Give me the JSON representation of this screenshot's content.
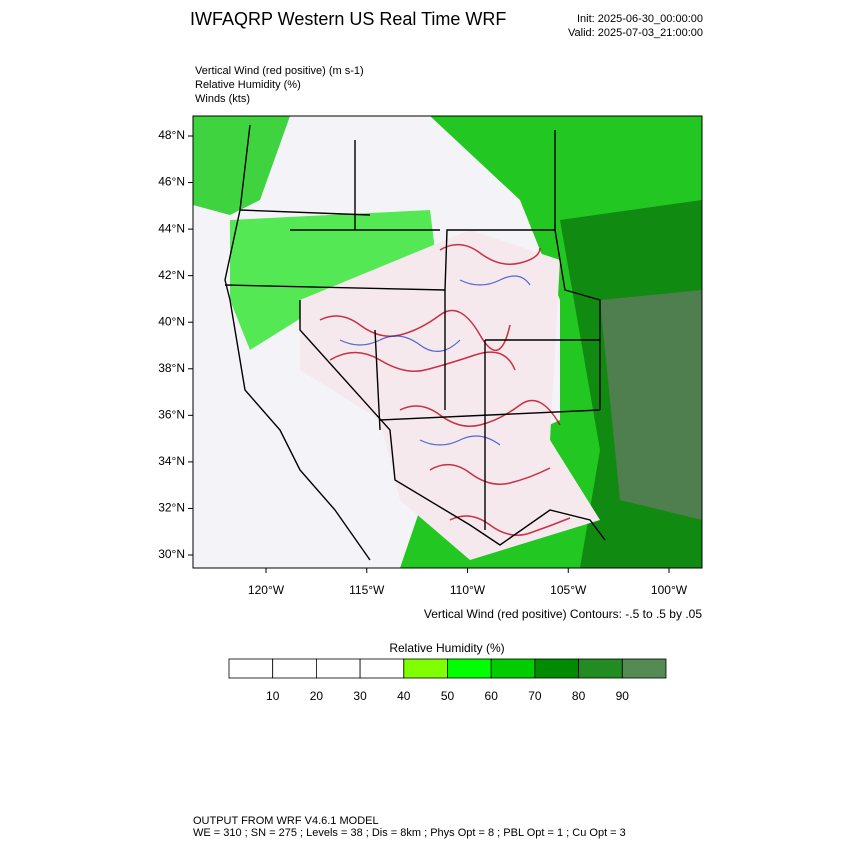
{
  "header": {
    "title": "IWFAQRP Western US Real Time WRF",
    "init": "Init: 2025-06-30_00:00:00",
    "valid": "Valid: 2025-07-03_21:00:00"
  },
  "fields": [
    "Vertical Wind (red positive)   (m s-1)",
    "Relative Humidity   (%)",
    "Winds   (kts)"
  ],
  "map": {
    "lat_labels": [
      "48°N",
      "46°N",
      "44°N",
      "42°N",
      "40°N",
      "38°N",
      "36°N",
      "34°N",
      "32°N",
      "30°N"
    ],
    "lon_labels": [
      "120°W",
      "115°W",
      "110°W",
      "105°W",
      "100°W"
    ],
    "contour_note": "Vertical Wind (red positive) Contours: -.5 to .5 by .05"
  },
  "colorbar": {
    "title": "Relative Humidity  (%)",
    "labels": [
      "10",
      "20",
      "30",
      "40",
      "50",
      "60",
      "70",
      "80",
      "90"
    ],
    "colors": [
      "#ffffff",
      "#ffffff",
      "#ffffff",
      "#ffffff",
      "#7fff00",
      "#00ff00",
      "#00cd00",
      "#008b00",
      "#228b22",
      "#548b54"
    ]
  },
  "footer": {
    "line1": "OUTPUT FROM WRF V4.6.1 MODEL",
    "line2": "WE = 310 ; SN = 275 ; Levels = 38 ; Dis = 8km ; Phys Opt = 8 ; PBL Opt = 1 ; Cu Opt = 3"
  }
}
